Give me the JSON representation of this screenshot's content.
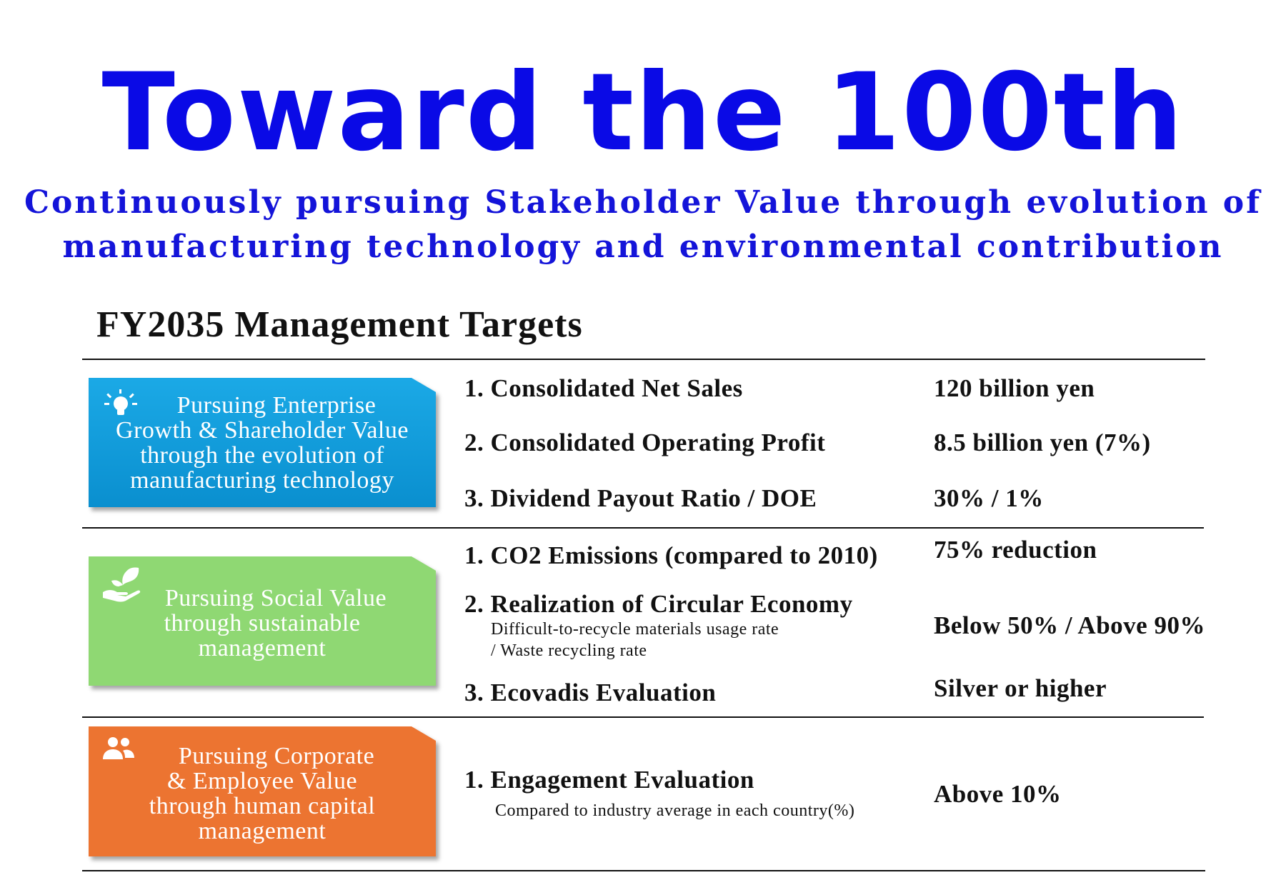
{
  "header": {
    "title": "Toward the 100th",
    "subtitle_line1": "Continuously pursuing Stakeholder Value through evolution of",
    "subtitle_line2": "manufacturing technology and environmental contribution"
  },
  "section_title": "FY2035 Management Targets",
  "colors": {
    "title_blue": "#0a0ae6",
    "card_blue": "#0f9ad8",
    "card_green": "#8fd873",
    "card_orange": "#ec7431"
  },
  "groups": [
    {
      "icon": "lightbulb-icon",
      "card_lines": [
        "Pursuing Enterprise",
        "Growth & Shareholder Value",
        "through the evolution of",
        "manufacturing technology"
      ],
      "items": [
        {
          "label": "1. Consolidated Net Sales",
          "value": "120 billion yen"
        },
        {
          "label": "2. Consolidated Operating Profit",
          "value": "8.5 billion yen (7%)"
        },
        {
          "label": "3. Dividend Payout Ratio / DOE",
          "value": "30% / 1%"
        }
      ]
    },
    {
      "icon": "plant-in-hand-icon",
      "card_lines": [
        "Pursuing Social Value",
        "through sustainable",
        "management"
      ],
      "items": [
        {
          "label": "1. CO2 Emissions (compared to 2010)",
          "value": "75% reduction"
        },
        {
          "label": "2. Realization of Circular Economy",
          "sub1": "Difficult-to-recycle materials usage rate",
          "sub2": "/ Waste recycling rate",
          "value": "Below 50% / Above 90%"
        },
        {
          "label": "3. Ecovadis Evaluation",
          "value": "Silver or higher"
        }
      ]
    },
    {
      "icon": "people-icon",
      "card_lines": [
        "Pursuing Corporate",
        "& Employee Value",
        "through human capital",
        "management"
      ],
      "items": [
        {
          "label": "1. Engagement Evaluation",
          "sub1": "Compared to industry average in each country(%)",
          "value": "Above 10%"
        }
      ]
    }
  ]
}
